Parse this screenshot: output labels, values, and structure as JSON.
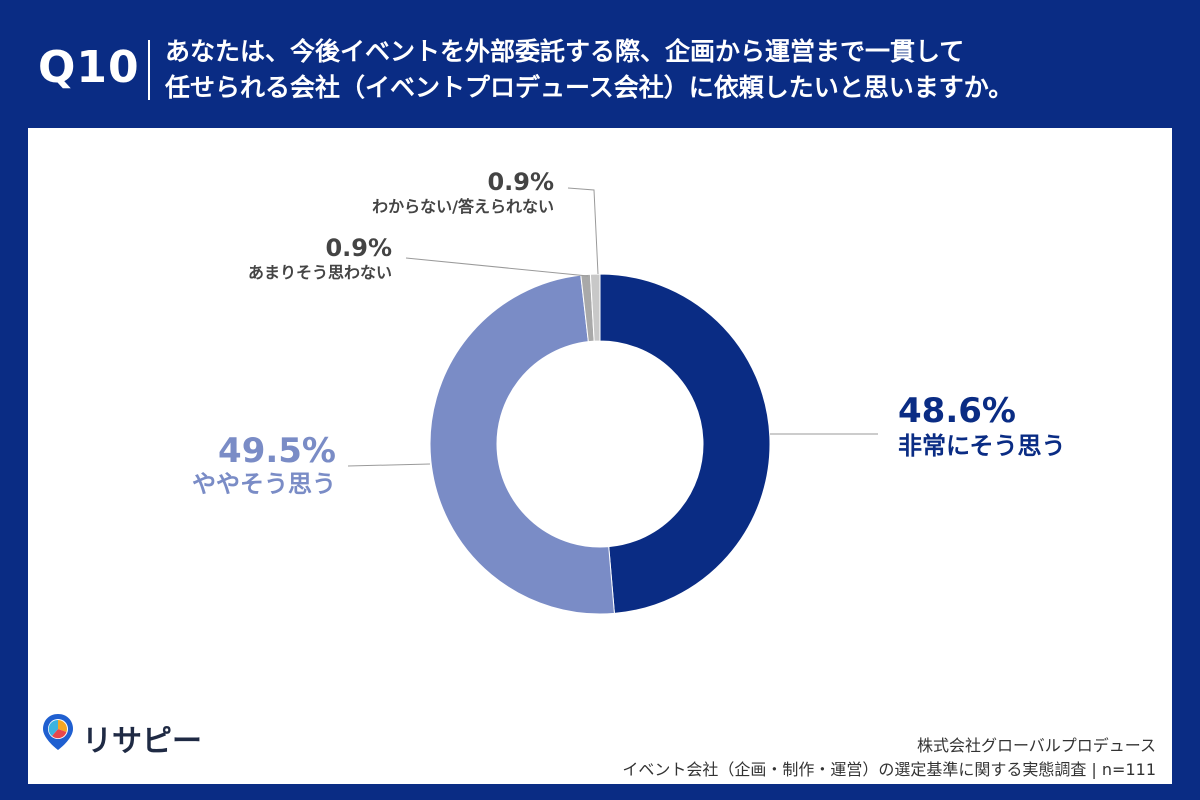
{
  "header": {
    "question_number": "Q10",
    "question_line1": "あなたは、今後イベントを外部委託する際、企画から運営まで一貫して",
    "question_line2": "任せられる会社（イベントプロデュース会社）に依頼したいと思いますか。"
  },
  "chart_data": {
    "type": "pie",
    "subtype": "donut",
    "categories": [
      "非常にそう思う",
      "ややそう思う",
      "あまりそう思わない",
      "わからない/答えられない"
    ],
    "values": [
      48.6,
      49.5,
      0.9,
      0.9
    ],
    "labels": [
      "48.6%",
      "49.5%",
      "0.9%",
      "0.9%"
    ],
    "colors": [
      "#0a2c84",
      "#7a8cc6",
      "#a9a9a9",
      "#c8c8c8"
    ],
    "label_colors": [
      "#0a2c84",
      "#7a8cc6",
      "#444444",
      "#444444"
    ],
    "unit": "%",
    "start_angle_deg": 0,
    "direction": "clockwise"
  },
  "branding": {
    "logo_text": "リサピー"
  },
  "source": {
    "line1": "株式会社グローバルプロデュース",
    "line2": "イベント会社（企画・制作・運営）の選定基準に関する実態調査 | n=111"
  },
  "colors": {
    "header_background": "#0a2c84",
    "panel_background": "#ffffff"
  }
}
